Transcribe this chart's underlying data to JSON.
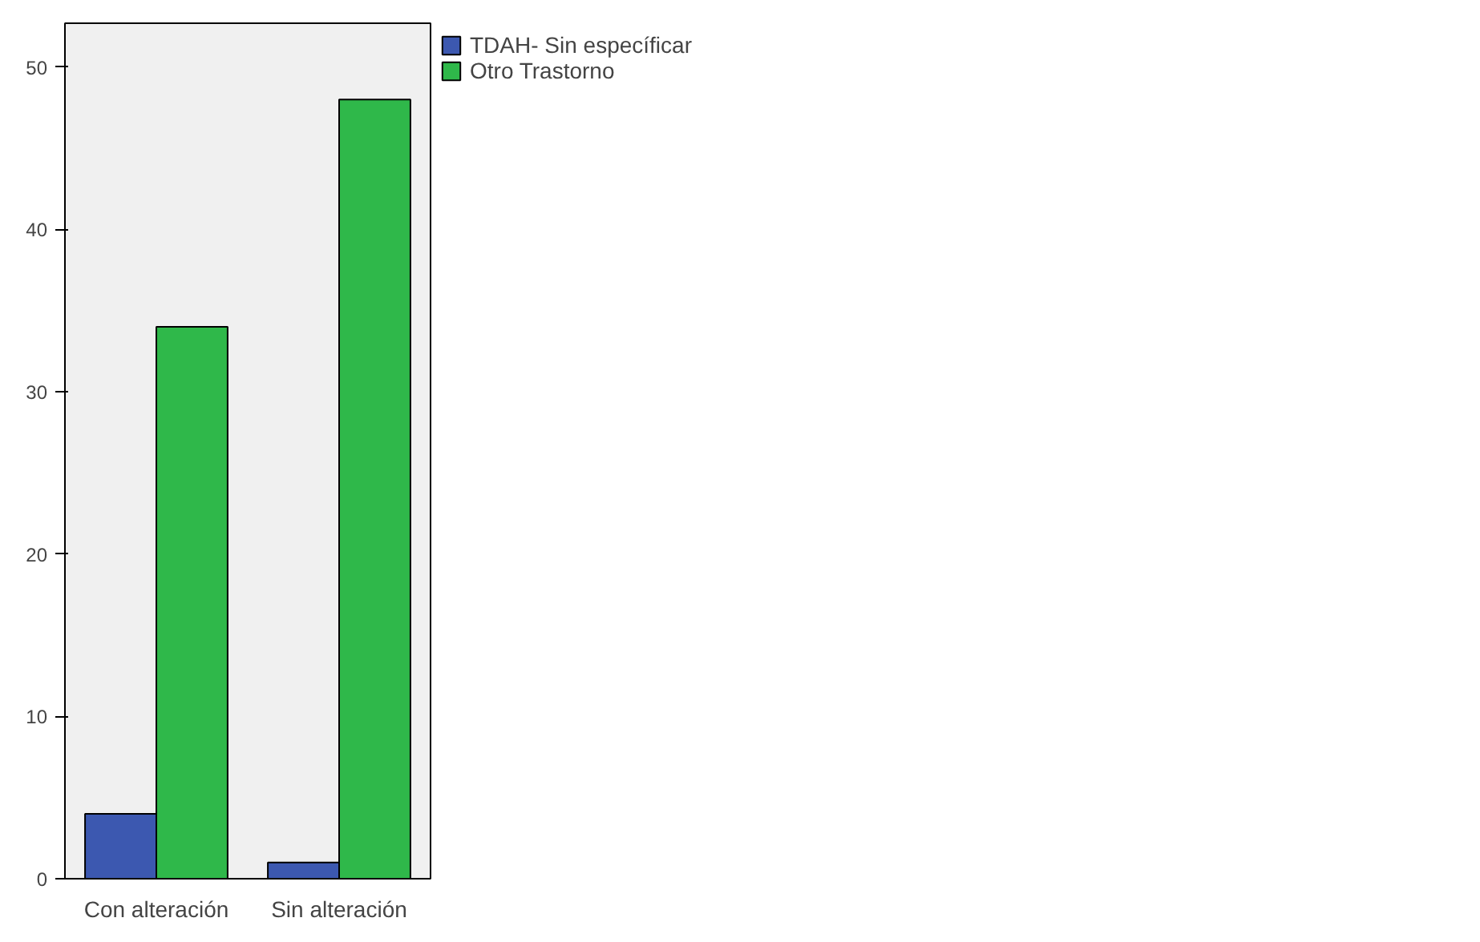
{
  "chart_data": {
    "type": "bar",
    "categories": [
      "Con alteración",
      "Sin alteración"
    ],
    "series": [
      {
        "name": "TDAH- Sin específicar",
        "color": "#3c58b0",
        "values": [
          4,
          1
        ]
      },
      {
        "name": "Otro Trastorno",
        "color": "#2fb84a",
        "values": [
          34,
          48
        ]
      }
    ],
    "ylim": [
      0,
      52.7
    ],
    "yticks": [
      0,
      10,
      20,
      30,
      40,
      50
    ],
    "grid": false,
    "legend": "top right"
  }
}
